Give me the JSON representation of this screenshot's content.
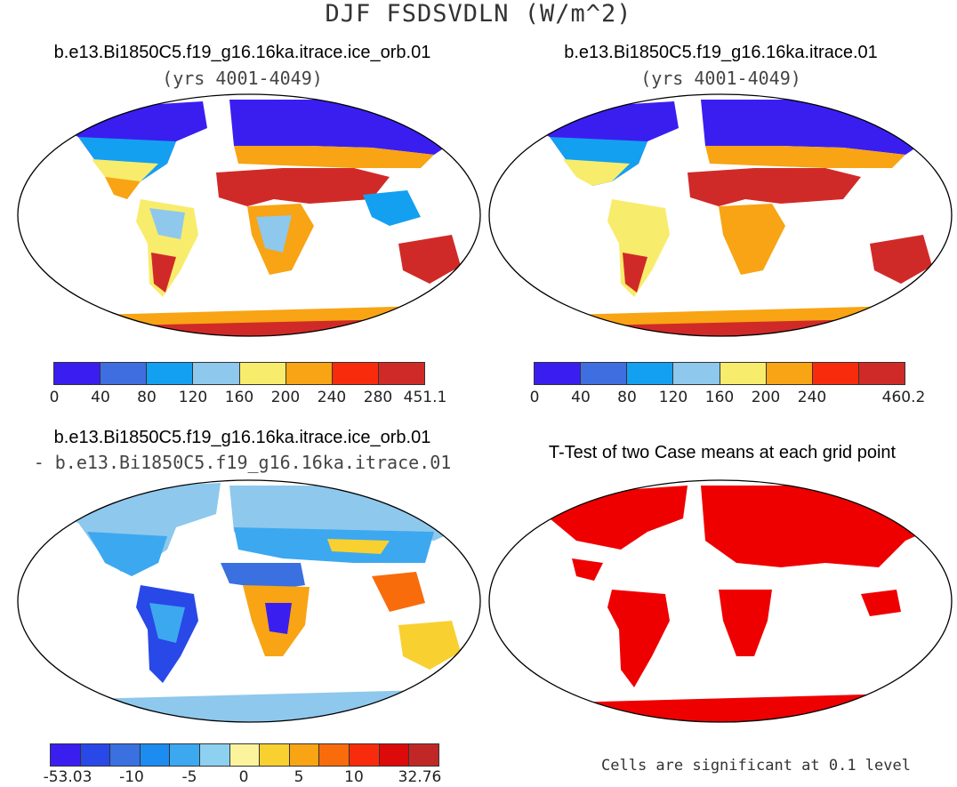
{
  "title": "DJF FSDSVDLN (W/m^2)",
  "panels": [
    {
      "id": "top-left",
      "title": "b.e13.Bi1850C5.f19_g16.16ka.itrace.ice_orb.01",
      "subtitle": "(yrs 4001-4049)",
      "colorbar": {
        "colors": [
          "#3a1ef0",
          "#3f6ee0",
          "#14a0f0",
          "#8ec8ec",
          "#f8ec6c",
          "#f8a414",
          "#f82c0c",
          "#d02a28"
        ],
        "ticks": [
          "0",
          "40",
          "80",
          "120",
          "160",
          "200",
          "240",
          "280",
          "451.1"
        ]
      }
    },
    {
      "id": "top-right",
      "title": "b.e13.Bi1850C5.f19_g16.16ka.itrace.01",
      "subtitle": "(yrs 4001-4049)",
      "colorbar": {
        "colors": [
          "#3a1ef0",
          "#3f6ee0",
          "#14a0f0",
          "#8ec8ec",
          "#f8ec6c",
          "#f8a414",
          "#f82c0c",
          "#d02a28"
        ],
        "ticks": [
          "0",
          "40",
          "80",
          "120",
          "160",
          "200",
          "240",
          "460.2"
        ]
      }
    },
    {
      "id": "bottom-left",
      "title": "b.e13.Bi1850C5.f19_g16.16ka.itrace.ice_orb.01",
      "subtitle": "- b.e13.Bi1850C5.f19_g16.16ka.itrace.01",
      "colorbar": {
        "colors": [
          "#3a1ef0",
          "#2848e8",
          "#3a70e0",
          "#1c8cf0",
          "#3ca8f0",
          "#8ed0f0",
          "#fcf49c",
          "#f8d030",
          "#f8a414",
          "#f86c0c",
          "#f82c0c",
          "#dc0a0a",
          "#c02828"
        ],
        "ticks": [
          "-53.03",
          "-10",
          "-5",
          "0",
          "5",
          "10",
          "32.76"
        ]
      }
    },
    {
      "id": "bottom-right",
      "title": "T-Test of two Case means at each grid point",
      "note": "Cells are significant at 0.1 level",
      "sig_color": "#ee0000"
    }
  ]
}
